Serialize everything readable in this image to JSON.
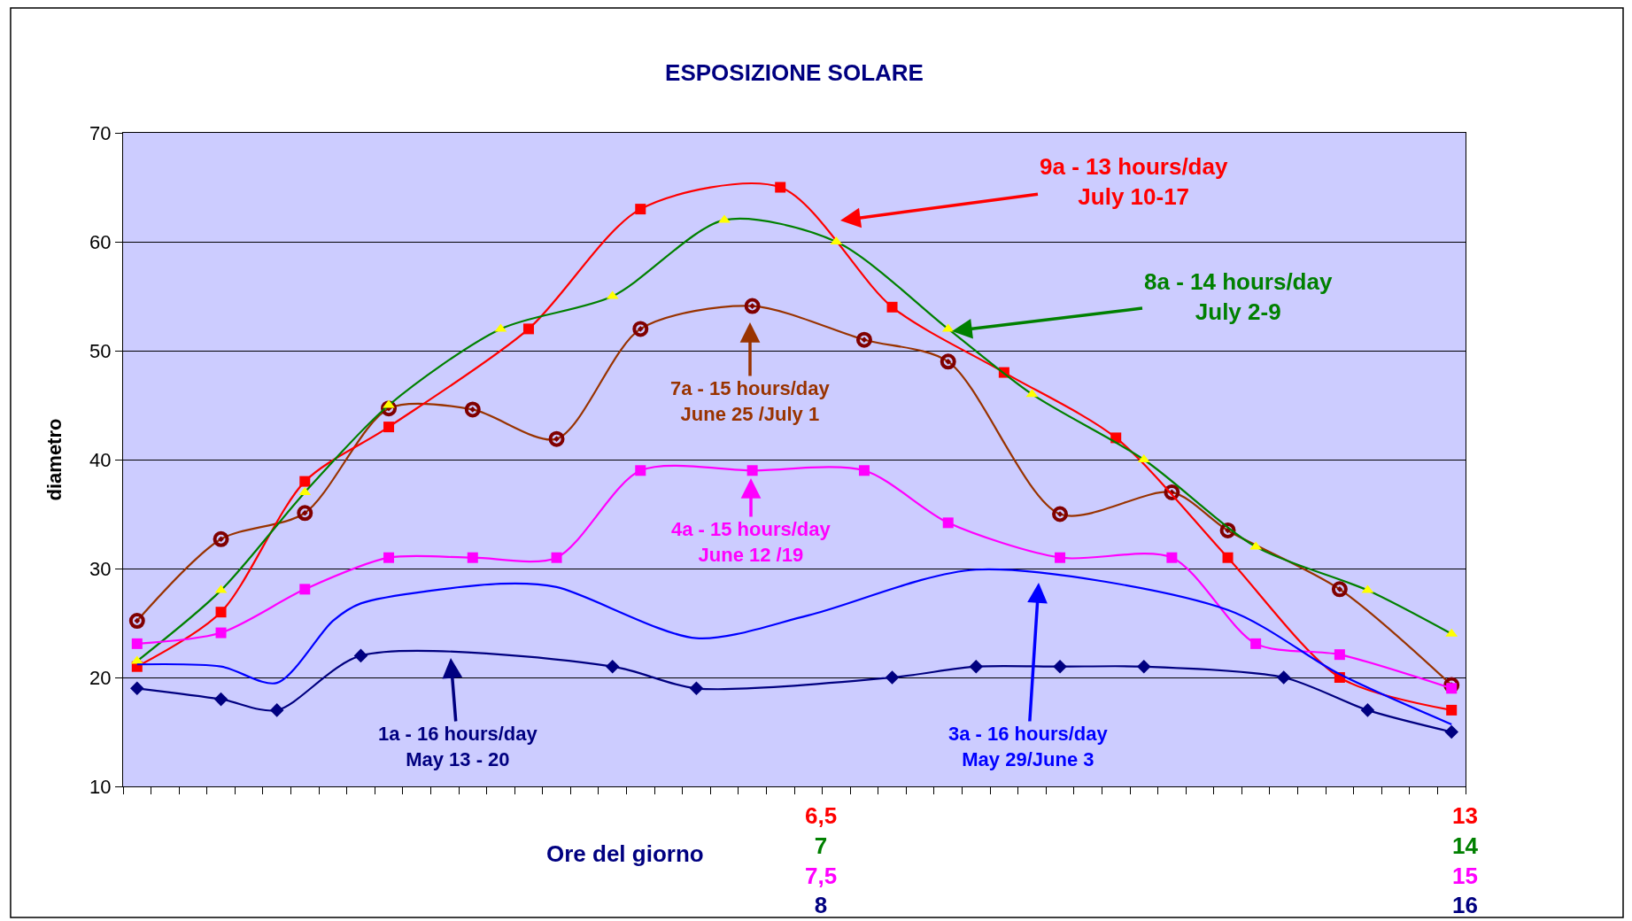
{
  "chart_data": {
    "type": "line",
    "title": "ESPOSIZIONE SOLARE",
    "xlabel": "Ore del giorno",
    "ylabel": "diametro",
    "categories": [
      null,
      null,
      null,
      null,
      null,
      null,
      null,
      null,
      null,
      null,
      null,
      null,
      null,
      null,
      null,
      null,
      null,
      null,
      null,
      null,
      null,
      null,
      null,
      null,
      null,
      null,
      null,
      null,
      null,
      null,
      null,
      null,
      null,
      null,
      null,
      null,
      null,
      null,
      null,
      null,
      null,
      null,
      null,
      null,
      null,
      null,
      null,
      null
    ],
    "ylim": [
      10,
      70
    ],
    "yticks": [
      10,
      20,
      30,
      40,
      50,
      60,
      70
    ],
    "grid": "y",
    "series": [
      {
        "color": "#ff0000",
        "marker": "square",
        "values": [
          21,
          null,
          null,
          26,
          null,
          null,
          38,
          null,
          null,
          43,
          null,
          null,
          null,
          null,
          52,
          null,
          null,
          null,
          63,
          null,
          null,
          null,
          null,
          65,
          null,
          null,
          null,
          54,
          null,
          null,
          null,
          48,
          null,
          null,
          null,
          42,
          null,
          null,
          null,
          31,
          null,
          null,
          null,
          20,
          null,
          null,
          null,
          17
        ]
      },
      {
        "color": "#008000",
        "marker": "triangle",
        "colors": [
          "#ffff00",
          "#ffff00",
          "#ffff00",
          "#ffff00",
          "#ffff00",
          "#ffff00",
          "#ffff00",
          "#ffff00",
          "#ffff00",
          "#ffff00",
          "#ffff00",
          "#ffff00",
          "#ffff00",
          "#ffff00",
          "#ffff00",
          "#ffff00",
          "#ffff00",
          "#ffff00",
          "#ffff00",
          "#ffff00",
          "#ffff00",
          "#ffff00",
          "#ffff00",
          "#ffff00",
          "#ffff00",
          "#ffff00",
          "#ffff00",
          "#ffff00",
          "#ffff00",
          "#ffff00",
          "#ffff00",
          "#ffff00",
          "#ffff00",
          "#ffff00",
          "#ffff00",
          "#ffff00",
          "#ffff00",
          "#ffff00",
          "#ffff00",
          "#ffff00",
          "#ffff00",
          "#ffff00",
          "#ffff00",
          "#ffff00",
          "#ffff00",
          "#ffff00",
          "#ffff00",
          "#ffff00"
        ],
        "values": [
          21.5,
          null,
          null,
          28,
          null,
          null,
          37,
          null,
          null,
          45,
          null,
          null,
          null,
          52,
          null,
          null,
          null,
          55,
          null,
          null,
          null,
          62,
          null,
          null,
          null,
          60,
          null,
          null,
          null,
          52,
          null,
          null,
          46,
          null,
          null,
          null,
          40,
          null,
          null,
          null,
          32,
          null,
          null,
          null,
          28,
          null,
          null,
          24
        ]
      },
      {
        "color": "#ff00ff",
        "marker": "square",
        "values": [
          23.1,
          null,
          null,
          24.1,
          null,
          null,
          28.1,
          null,
          null,
          31,
          null,
          null,
          31,
          null,
          null,
          31,
          null,
          null,
          39,
          null,
          null,
          null,
          39,
          null,
          null,
          null,
          39,
          null,
          null,
          34.2,
          null,
          null,
          null,
          31,
          null,
          null,
          null,
          31,
          null,
          null,
          23.1,
          null,
          null,
          22.1,
          null,
          null,
          null,
          19
        ]
      },
      {
        "color": "#000080",
        "marker": "diamond",
        "values": [
          19,
          null,
          null,
          18,
          null,
          17,
          null,
          null,
          22,
          null,
          null,
          null,
          null,
          null,
          null,
          null,
          null,
          21,
          null,
          null,
          19,
          null,
          null,
          null,
          null,
          null,
          null,
          20,
          null,
          null,
          21,
          null,
          null,
          21,
          null,
          null,
          21,
          null,
          null,
          null,
          null,
          20,
          null,
          null,
          17,
          null,
          null,
          15
        ]
      },
      {
        "color": "#993300",
        "marker": "circle",
        "colors": [
          "#800000",
          "#800000",
          "#800000",
          "#800000",
          "#800000",
          "#800000",
          "#800000",
          "#800000",
          "#800000",
          "#800000",
          "#800000",
          "#800000",
          "#800000",
          "#800000",
          "#800000",
          "#800000",
          "#800000",
          "#800000",
          "#800000",
          "#800000",
          "#800000",
          "#800000",
          "#800000",
          "#800000",
          "#800000",
          "#800000",
          "#800000",
          "#800000",
          "#800000",
          "#800000",
          "#800000",
          "#800000",
          "#800000",
          "#800000",
          "#800000",
          "#800000",
          "#800000",
          "#800000",
          "#800000",
          "#800000",
          "#800000",
          "#800000",
          "#800000",
          "#800000",
          "#800000",
          "#800000",
          "#800000",
          "#800000"
        ],
        "values": [
          25.2,
          null,
          null,
          32.7,
          null,
          null,
          35.1,
          null,
          null,
          44.7,
          null,
          null,
          44.6,
          null,
          null,
          41.9,
          null,
          null,
          52,
          null,
          null,
          null,
          54.1,
          null,
          null,
          null,
          51,
          null,
          null,
          49,
          null,
          null,
          null,
          35,
          null,
          null,
          null,
          37,
          null,
          33.5,
          null,
          null,
          null,
          28.1,
          null,
          null,
          null,
          19.3
        ]
      },
      {
        "color": "#0000ff",
        "marker": "none",
        "values": [
          21.2,
          null,
          null,
          21,
          null,
          19.5,
          null,
          25.2,
          26.8,
          null,
          null,
          null,
          null,
          28.6,
          null,
          28.3,
          null,
          null,
          null,
          null,
          23.6,
          null,
          null,
          null,
          25.7,
          null,
          null,
          null,
          null,
          null,
          29.9,
          null,
          null,
          null,
          null,
          null,
          null,
          null,
          null,
          26.2,
          null,
          null,
          null,
          20.3,
          null,
          null,
          null,
          15.7
        ]
      }
    ],
    "annotations": [
      "9a - 13 hours/day\nJuly 10-17",
      "8a - 14 hours/day\nJuly 2-9",
      "4a - 15 hours/day\nJune 12 /19",
      "1a - 16 hours/day\nMay 13 - 20",
      "7a - 15 hours/day\nJune 25 /July 1",
      "3a - 16 hours/day\nMay 29/June 3",
      "6,5\n7\n7,5\n8",
      "13\n14\n15\n16"
    ]
  }
}
